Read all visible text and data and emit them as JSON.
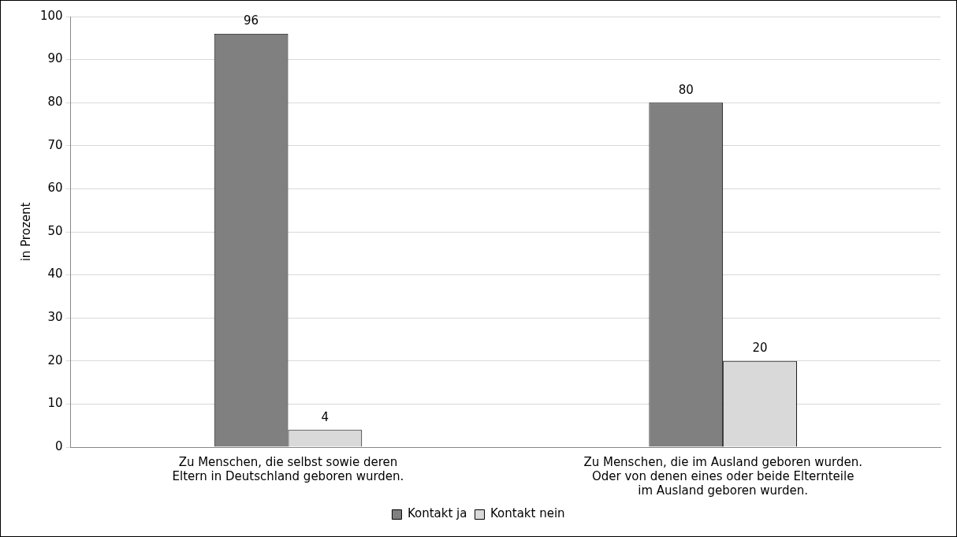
{
  "chart_data": {
    "type": "bar",
    "ylabel": "in Prozent",
    "categories": [
      "Zu Menschen, die selbst sowie deren\nEltern in Deutschland geboren wurden.",
      "Zu Menschen, die im Ausland geboren wurden.\nOder von denen eines oder beide Elternteile\nim Ausland geboren wurden."
    ],
    "series": [
      {
        "name": "Kontakt ja",
        "color": "#808080",
        "values": [
          96,
          80
        ]
      },
      {
        "name": "Kontakt nein",
        "color": "#d9d9d9",
        "values": [
          4,
          20
        ]
      }
    ],
    "ylim": [
      0,
      100
    ],
    "yticks": [
      0,
      10,
      20,
      30,
      40,
      50,
      60,
      70,
      80,
      90,
      100
    ],
    "grid": "y",
    "legend": "bottom",
    "data_labels": true
  }
}
